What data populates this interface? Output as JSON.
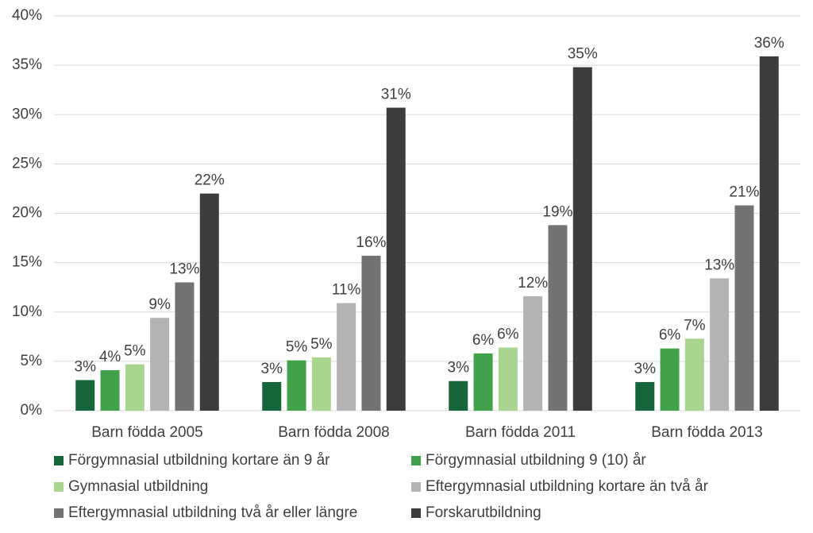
{
  "chart_data": {
    "type": "bar",
    "categories": [
      "Barn födda 2005",
      "Barn födda 2008",
      "Barn födda 2011",
      "Barn födda 2013"
    ],
    "series": [
      {
        "name": "Förgymnasial utbildning kortare än 9 år",
        "color": "#17653a",
        "values": [
          3.1,
          2.9,
          3.0,
          2.9
        ],
        "value_labels": [
          "3%",
          "3%",
          "3%",
          "3%"
        ]
      },
      {
        "name": "Förgymnasial utbildning 9 (10) år",
        "color": "#41a24b",
        "values": [
          4.1,
          5.1,
          5.8,
          6.3
        ],
        "value_labels": [
          "4%",
          "5%",
          "6%",
          "6%"
        ]
      },
      {
        "name": "Gymnasial utbildning",
        "color": "#a9d590",
        "values": [
          4.7,
          5.4,
          6.4,
          7.3
        ],
        "value_labels": [
          "5%",
          "5%",
          "6%",
          "7%"
        ]
      },
      {
        "name": "Eftergymnasial utbildning kortare än två år",
        "color": "#b3b3b3",
        "values": [
          9.4,
          10.9,
          11.6,
          13.4
        ],
        "value_labels": [
          "9%",
          "11%",
          "12%",
          "13%"
        ]
      },
      {
        "name": "Eftergymnasial utbildning två år eller längre",
        "color": "#737375",
        "values": [
          13.0,
          15.7,
          18.8,
          20.8
        ],
        "value_labels": [
          "13%",
          "16%",
          "19%",
          "21%"
        ]
      },
      {
        "name": "Forskarutbildning",
        "color": "#3c3c3e",
        "values": [
          22.0,
          30.7,
          34.8,
          35.9
        ],
        "value_labels": [
          "22%",
          "31%",
          "35%",
          "36%"
        ]
      }
    ],
    "ylim": [
      0,
      40
    ],
    "yticks": [
      {
        "value": 0,
        "label": "0%"
      },
      {
        "value": 5,
        "label": "5%"
      },
      {
        "value": 10,
        "label": "10%"
      },
      {
        "value": 15,
        "label": "15%"
      },
      {
        "value": 20,
        "label": "20%"
      },
      {
        "value": 25,
        "label": "25%"
      },
      {
        "value": 30,
        "label": "30%"
      },
      {
        "value": 35,
        "label": "35%"
      },
      {
        "value": 40,
        "label": "40%"
      }
    ],
    "grid": true
  }
}
